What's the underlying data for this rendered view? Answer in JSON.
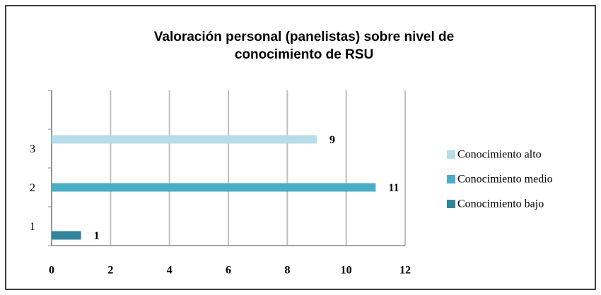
{
  "chart_data": {
    "type": "bar",
    "orientation": "horizontal",
    "title": "Valoración personal (panelistas) sobre nivel de conocimiento de RSU",
    "categories": [
      "1",
      "2",
      "3",
      null
    ],
    "series": [
      {
        "name": "Conocimiento bajo",
        "color": "#31859c",
        "values": [
          1,
          null,
          null,
          null
        ]
      },
      {
        "name": "Conocimiento medio",
        "color": "#4bacc6",
        "values": [
          null,
          11,
          null,
          null
        ]
      },
      {
        "name": "Conocimiento alto",
        "color": "#b7dde8",
        "values": [
          null,
          null,
          9,
          null
        ]
      }
    ],
    "xlim": [
      0,
      12
    ],
    "xticks": [
      0,
      2,
      4,
      6,
      8,
      10,
      12
    ],
    "grid": true,
    "legend": "right"
  }
}
